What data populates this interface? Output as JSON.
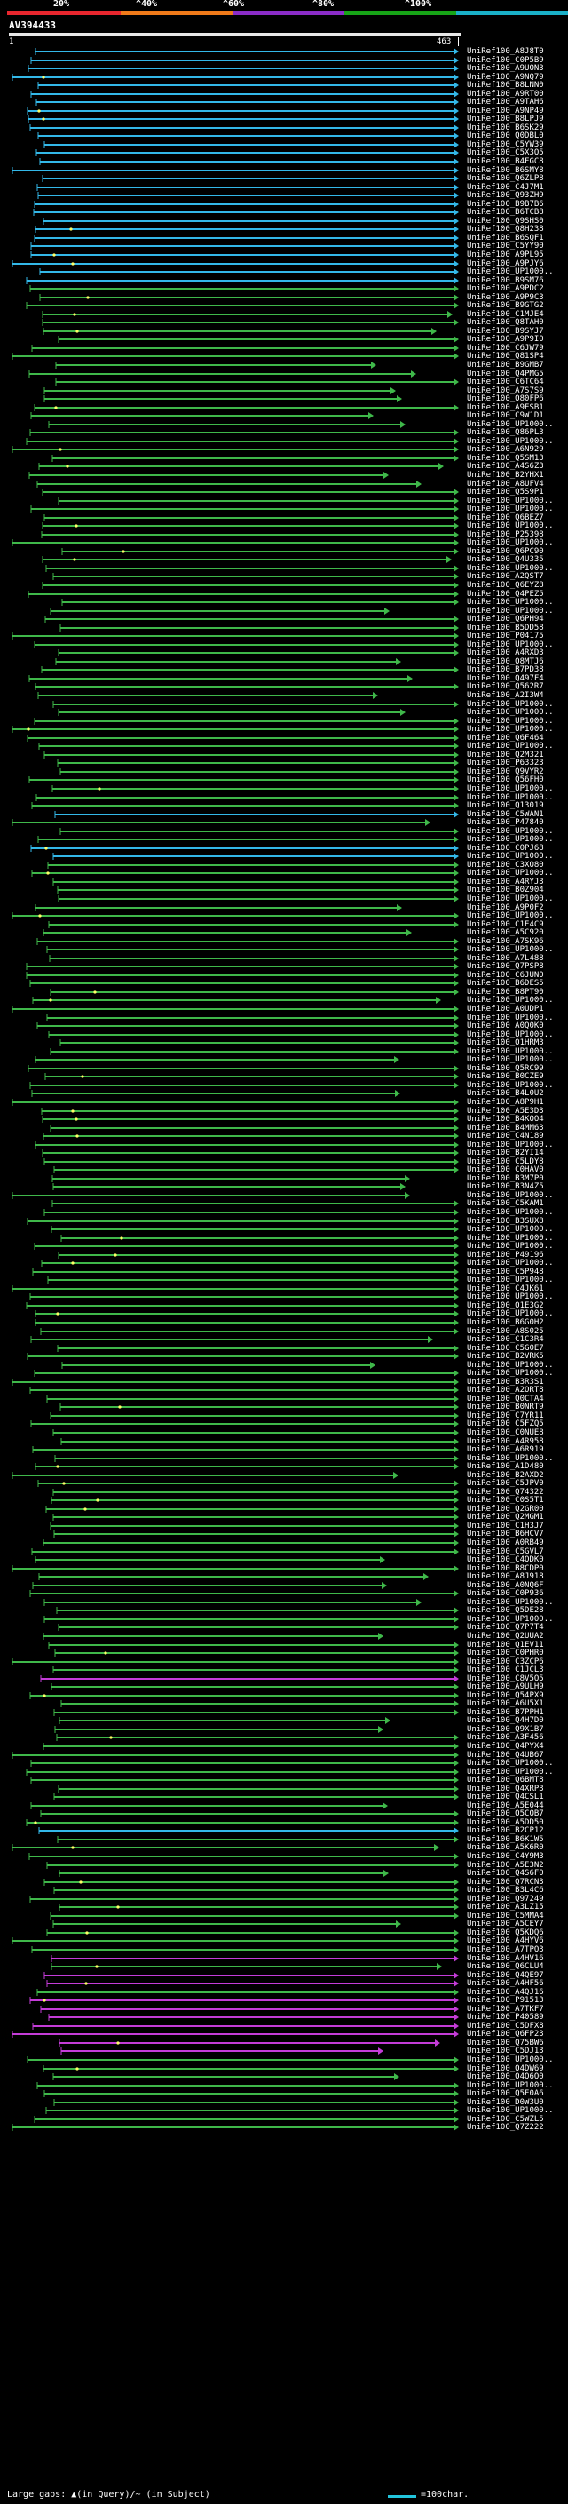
{
  "header": {
    "percent_labels": [
      "20%",
      "^40%",
      "^60%",
      "^80%",
      "^100%"
    ],
    "colors": [
      "#e8262e",
      "#f07a1a",
      "#8b2cc8",
      "#17a517",
      "#1ab0c8"
    ]
  },
  "query": {
    "title": "AV394433",
    "start": "1",
    "end": "463"
  },
  "hit_colors": {
    "cyan": "#33b8e8",
    "green": "#3fb84a",
    "magenta": "#c43cd8",
    "gap": "#ffff66"
  },
  "hits": [
    {
      "label": "UniRef100_A8J8T0",
      "color": "cyan"
    },
    {
      "label": "UniRef100_C0P5B9",
      "color": "cyan"
    },
    {
      "label": "UniRef100_A9UON3",
      "color": "cyan"
    },
    {
      "label": "UniRef100_A9NQ79",
      "color": "cyan"
    },
    {
      "label": "UniRef100_B8LNN0",
      "color": "cyan"
    },
    {
      "label": "UniRef100_A9RT00",
      "color": "cyan"
    },
    {
      "label": "UniRef100_A9TAH6",
      "color": "cyan"
    },
    {
      "label": "UniRef100_A9NP49",
      "color": "cyan"
    },
    {
      "label": "UniRef100_B8LPJ9",
      "color": "cyan"
    },
    {
      "label": "UniRef100_B6SK29",
      "color": "cyan"
    },
    {
      "label": "UniRef100_Q0DBL0",
      "color": "cyan"
    },
    {
      "label": "UniRef100_C5YW39",
      "color": "cyan"
    },
    {
      "label": "UniRef100_C5X3Q5",
      "color": "cyan"
    },
    {
      "label": "UniRef100_B4FGC8",
      "color": "cyan"
    },
    {
      "label": "UniRef100_B6SMY8",
      "color": "cyan"
    },
    {
      "label": "UniRef100_Q6ZLP8",
      "color": "cyan"
    },
    {
      "label": "UniRef100_C4J7M1",
      "color": "cyan"
    },
    {
      "label": "UniRef100_Q93ZH9",
      "color": "cyan"
    },
    {
      "label": "UniRef100_B9B7B6",
      "color": "cyan"
    },
    {
      "label": "UniRef100_B6TCB8",
      "color": "cyan"
    },
    {
      "label": "UniRef100_Q9SHS0",
      "color": "cyan"
    },
    {
      "label": "UniRef100_Q8H238",
      "color": "cyan"
    },
    {
      "label": "UniRef100_B6SQF1",
      "color": "cyan"
    },
    {
      "label": "UniRef100_C5YY90",
      "color": "cyan"
    },
    {
      "label": "UniRef100_A9PL95",
      "color": "cyan"
    },
    {
      "label": "UniRef100_A9PJY6",
      "color": "cyan"
    },
    {
      "label": "UniRef100_UP1000..",
      "color": "cyan"
    },
    {
      "label": "UniRef100_B9SM76",
      "color": "cyan"
    },
    {
      "label": "UniRef100_A9PDC2",
      "color": "green"
    },
    {
      "label": "UniRef100_A9P9C3",
      "color": "green"
    },
    {
      "label": "UniRef100_B9GTG2",
      "color": "green"
    },
    {
      "label": "UniRef100_C1MJE4",
      "color": "green"
    },
    {
      "label": "UniRef100_Q8TAH0",
      "color": "green"
    },
    {
      "label": "UniRef100_B9SYJ7",
      "color": "green"
    },
    {
      "label": "UniRef100_A9P9I0",
      "color": "green"
    },
    {
      "label": "UniRef100_C6JW79",
      "color": "green"
    },
    {
      "label": "UniRef100_Q81SP4",
      "color": "green"
    },
    {
      "label": "UniRef100_B9GMB7",
      "color": "green"
    },
    {
      "label": "UniRef100_Q4PMG5",
      "color": "green"
    },
    {
      "label": "UniRef100_C6TC64",
      "color": "green"
    },
    {
      "label": "UniRef100_A7S7S9",
      "color": "green"
    },
    {
      "label": "UniRef100_Q80FP6",
      "color": "green"
    },
    {
      "label": "UniRef100_A9ESB1",
      "color": "green"
    },
    {
      "label": "UniRef100_C9W1D1",
      "color": "green"
    },
    {
      "label": "UniRef100_UP1000..",
      "color": "green"
    },
    {
      "label": "UniRef100_Q86PL3",
      "color": "green"
    },
    {
      "label": "UniRef100_UP1000..",
      "color": "green"
    },
    {
      "label": "UniRef100_A6N929",
      "color": "green"
    },
    {
      "label": "UniRef100_Q5SM13",
      "color": "green"
    },
    {
      "label": "UniRef100_A4S6Z3",
      "color": "green"
    },
    {
      "label": "UniRef100_B2YHX1",
      "color": "green"
    },
    {
      "label": "UniRef100_A8UFV4",
      "color": "green"
    },
    {
      "label": "UniRef100_Q5S9P1",
      "color": "green"
    },
    {
      "label": "UniRef100_UP1000..",
      "color": "green"
    },
    {
      "label": "UniRef100_UP1000..",
      "color": "green"
    },
    {
      "label": "UniRef100_Q6BEZ7",
      "color": "green"
    },
    {
      "label": "UniRef100_UP1000..",
      "color": "green"
    },
    {
      "label": "UniRef100_P25398",
      "color": "green"
    },
    {
      "label": "UniRef100_UP1000..",
      "color": "green"
    },
    {
      "label": "UniRef100_Q6PC90",
      "color": "green"
    },
    {
      "label": "UniRef100_Q4U335",
      "color": "green"
    },
    {
      "label": "UniRef100_UP1000..",
      "color": "green"
    },
    {
      "label": "UniRef100_A2QST7",
      "color": "green"
    },
    {
      "label": "UniRef100_Q6EYZ8",
      "color": "green"
    },
    {
      "label": "UniRef100_Q4PEZ5",
      "color": "green"
    },
    {
      "label": "UniRef100_UP1000..",
      "color": "green"
    },
    {
      "label": "UniRef100_UP1000..",
      "color": "green"
    },
    {
      "label": "UniRef100_Q6PH94",
      "color": "green"
    },
    {
      "label": "UniRef100_B5DD58",
      "color": "green"
    },
    {
      "label": "UniRef100_P04175",
      "color": "green"
    },
    {
      "label": "UniRef100_UP1000..",
      "color": "green"
    },
    {
      "label": "UniRef100_A4RXD3",
      "color": "green"
    },
    {
      "label": "UniRef100_Q8MTJ6",
      "color": "green"
    },
    {
      "label": "UniRef100_B7PD38",
      "color": "green"
    },
    {
      "label": "UniRef100_Q497F4",
      "color": "green"
    },
    {
      "label": "UniRef100_Q562R7",
      "color": "green"
    },
    {
      "label": "UniRef100_A2I3W4",
      "color": "green"
    },
    {
      "label": "UniRef100_UP1000..",
      "color": "green"
    },
    {
      "label": "UniRef100_UP1000..",
      "color": "green"
    },
    {
      "label": "UniRef100_UP1000..",
      "color": "green"
    },
    {
      "label": "UniRef100_UP1000..",
      "color": "green"
    },
    {
      "label": "UniRef100_Q6F464",
      "color": "green"
    },
    {
      "label": "UniRef100_UP1000..",
      "color": "green"
    },
    {
      "label": "UniRef100_Q2M321",
      "color": "green"
    },
    {
      "label": "UniRef100_P63323",
      "color": "green"
    },
    {
      "label": "UniRef100_Q9VYR2",
      "color": "green"
    },
    {
      "label": "UniRef100_Q56FH0",
      "color": "green"
    },
    {
      "label": "UniRef100_UP1000..",
      "color": "green"
    },
    {
      "label": "UniRef100_UP1000..",
      "color": "green"
    },
    {
      "label": "UniRef100_Q13019",
      "color": "green"
    },
    {
      "label": "UniRef100_C5WAN1",
      "color": "cyan"
    },
    {
      "label": "UniRef100_P47840",
      "color": "green"
    },
    {
      "label": "UniRef100_UP1000..",
      "color": "green"
    },
    {
      "label": "UniRef100_UP1000..",
      "color": "green"
    },
    {
      "label": "UniRef100_C0PJ68",
      "color": "cyan"
    },
    {
      "label": "UniRef100_UP1000..",
      "color": "cyan"
    },
    {
      "label": "UniRef100_C3XO80",
      "color": "green"
    },
    {
      "label": "UniRef100_UP1000..",
      "color": "green"
    },
    {
      "label": "UniRef100_A4RYJ3",
      "color": "green"
    },
    {
      "label": "UniRef100_B0Z904",
      "color": "green"
    },
    {
      "label": "UniRef100_UP1000..",
      "color": "green"
    },
    {
      "label": "UniRef100_A9P0F2",
      "color": "green"
    },
    {
      "label": "UniRef100_UP1000..",
      "color": "green"
    },
    {
      "label": "UniRef100_C1E4C9",
      "color": "green"
    },
    {
      "label": "UniRef100_A5C920",
      "color": "green"
    },
    {
      "label": "UniRef100_A7SK96",
      "color": "green"
    },
    {
      "label": "UniRef100_UP1000..",
      "color": "green"
    },
    {
      "label": "UniRef100_A7L488",
      "color": "green"
    },
    {
      "label": "UniRef100_Q7PSP8",
      "color": "green"
    },
    {
      "label": "UniRef100_C6JUN0",
      "color": "green"
    },
    {
      "label": "UniRef100_B6DES5",
      "color": "green"
    },
    {
      "label": "UniRef100_B8PT90",
      "color": "green"
    },
    {
      "label": "UniRef100_UP1000..",
      "color": "green"
    },
    {
      "label": "UniRef100_A0UDP1",
      "color": "green"
    },
    {
      "label": "UniRef100_UP1000..",
      "color": "green"
    },
    {
      "label": "UniRef100_A0Q0K0",
      "color": "green"
    },
    {
      "label": "UniRef100_UP1000..",
      "color": "green"
    },
    {
      "label": "UniRef100_Q1HRM3",
      "color": "green"
    },
    {
      "label": "UniRef100_UP1000..",
      "color": "green"
    },
    {
      "label": "UniRef100_UP1000..",
      "color": "green"
    },
    {
      "label": "UniRef100_Q5RC99",
      "color": "green"
    },
    {
      "label": "UniRef100_B0CZE9",
      "color": "green"
    },
    {
      "label": "UniRef100_UP1000..",
      "color": "green"
    },
    {
      "label": "UniRef100_B4L0U2",
      "color": "green"
    },
    {
      "label": "UniRef100_A8P9H1",
      "color": "green"
    },
    {
      "label": "UniRef100_A5E3D3",
      "color": "green"
    },
    {
      "label": "UniRef100_B4KOO4",
      "color": "green"
    },
    {
      "label": "UniRef100_B4MM63",
      "color": "green"
    },
    {
      "label": "UniRef100_C4N189",
      "color": "green"
    },
    {
      "label": "UniRef100_UP1000..",
      "color": "green"
    },
    {
      "label": "UniRef100_B2YI14",
      "color": "green"
    },
    {
      "label": "UniRef100_C5LDY8",
      "color": "green"
    },
    {
      "label": "UniRef100_C0HAV0",
      "color": "green"
    },
    {
      "label": "UniRef100_B3M7P0",
      "color": "green"
    },
    {
      "label": "UniRef100_B3N4Z5",
      "color": "green"
    },
    {
      "label": "UniRef100_UP1000..",
      "color": "green"
    },
    {
      "label": "UniRef100_C5KAM1",
      "color": "green"
    },
    {
      "label": "UniRef100_UP1000..",
      "color": "green"
    },
    {
      "label": "UniRef100_B3SUX8",
      "color": "green"
    },
    {
      "label": "UniRef100_UP1000..",
      "color": "green"
    },
    {
      "label": "UniRef100_UP1000..",
      "color": "green"
    },
    {
      "label": "UniRef100_UP1000..",
      "color": "green"
    },
    {
      "label": "UniRef100_P49196",
      "color": "green"
    },
    {
      "label": "UniRef100_UP1000..",
      "color": "green"
    },
    {
      "label": "UniRef100_C5P948",
      "color": "green"
    },
    {
      "label": "UniRef100_UP1000..",
      "color": "green"
    },
    {
      "label": "UniRef100_C4JK61",
      "color": "green"
    },
    {
      "label": "UniRef100_UP1000..",
      "color": "green"
    },
    {
      "label": "UniRef100_Q1E3G2",
      "color": "green"
    },
    {
      "label": "UniRef100_UP1000..",
      "color": "green"
    },
    {
      "label": "UniRef100_B6G0H2",
      "color": "green"
    },
    {
      "label": "UniRef100_A8S025",
      "color": "green"
    },
    {
      "label": "UniRef100_C1C3R4",
      "color": "green"
    },
    {
      "label": "UniRef100_C5G0E7",
      "color": "green"
    },
    {
      "label": "UniRef100_B2VRK5",
      "color": "green"
    },
    {
      "label": "UniRef100_UP1000..",
      "color": "green"
    },
    {
      "label": "UniRef100_UP1000..",
      "color": "green"
    },
    {
      "label": "UniRef100_B3R3S1",
      "color": "green"
    },
    {
      "label": "UniRef100_A2ORT8",
      "color": "green"
    },
    {
      "label": "UniRef100_Q0CTA4",
      "color": "green"
    },
    {
      "label": "UniRef100_B0NRT9",
      "color": "green"
    },
    {
      "label": "UniRef100_C7YR11",
      "color": "green"
    },
    {
      "label": "UniRef100_C5FZQ5",
      "color": "green"
    },
    {
      "label": "UniRef100_C0NUE8",
      "color": "green"
    },
    {
      "label": "UniRef100_A4R958",
      "color": "green"
    },
    {
      "label": "UniRef100_A6R919",
      "color": "green"
    },
    {
      "label": "UniRef100_UP1000..",
      "color": "green"
    },
    {
      "label": "UniRef100_A1D480",
      "color": "green"
    },
    {
      "label": "UniRef100_B2AXD2",
      "color": "green"
    },
    {
      "label": "UniRef100_C5JPV0",
      "color": "green"
    },
    {
      "label": "UniRef100_Q74322",
      "color": "green"
    },
    {
      "label": "UniRef100_C0S5T1",
      "color": "green"
    },
    {
      "label": "UniRef100_Q2GR00",
      "color": "green"
    },
    {
      "label": "UniRef100_Q2MGM1",
      "color": "green"
    },
    {
      "label": "UniRef100_C1H3J7",
      "color": "green"
    },
    {
      "label": "UniRef100_B6HCV7",
      "color": "green"
    },
    {
      "label": "UniRef100_A0RB49",
      "color": "green"
    },
    {
      "label": "UniRef100_C5GVL7",
      "color": "green"
    },
    {
      "label": "UniRef100_C4QDK0",
      "color": "green"
    },
    {
      "label": "UniRef100_B8CDP0",
      "color": "green"
    },
    {
      "label": "UniRef100_A8J918",
      "color": "green"
    },
    {
      "label": "UniRef100_A0NQ6F",
      "color": "green"
    },
    {
      "label": "UniRef100_C0P936",
      "color": "green"
    },
    {
      "label": "UniRef100_UP1000..",
      "color": "green"
    },
    {
      "label": "UniRef100_Q5DE28",
      "color": "green"
    },
    {
      "label": "UniRef100_UP1000..",
      "color": "green"
    },
    {
      "label": "UniRef100_Q7P7T4",
      "color": "green"
    },
    {
      "label": "UniRef100_Q2UUA2",
      "color": "green"
    },
    {
      "label": "UniRef100_Q1EV11",
      "color": "green"
    },
    {
      "label": "UniRef100_C0PHR0",
      "color": "green"
    },
    {
      "label": "UniRef100_C3ZCP6",
      "color": "green"
    },
    {
      "label": "UniRef100_C1JCL3",
      "color": "green"
    },
    {
      "label": "UniRef100_C8V5Q5",
      "color": "magenta"
    },
    {
      "label": "UniRef100_A9ULH9",
      "color": "green"
    },
    {
      "label": "UniRef100_Q54PX9",
      "color": "green"
    },
    {
      "label": "UniRef100_A6U5X1",
      "color": "green"
    },
    {
      "label": "UniRef100_B7PPH1",
      "color": "green"
    },
    {
      "label": "UniRef100_Q4H7D0",
      "color": "green"
    },
    {
      "label": "UniRef100_Q9X1B7",
      "color": "green"
    },
    {
      "label": "UniRef100_A3F456",
      "color": "green"
    },
    {
      "label": "UniRef100_Q4PYX4",
      "color": "green"
    },
    {
      "label": "UniRef100_Q4UB67",
      "color": "green"
    },
    {
      "label": "UniRef100_UP1000..",
      "color": "green"
    },
    {
      "label": "UniRef100_UP1000..",
      "color": "green"
    },
    {
      "label": "UniRef100_Q6BMT8",
      "color": "green"
    },
    {
      "label": "UniRef100_Q4XRP3",
      "color": "green"
    },
    {
      "label": "UniRef100_Q4CSL1",
      "color": "green"
    },
    {
      "label": "UniRef100_A5E044",
      "color": "green"
    },
    {
      "label": "UniRef100_Q5CQB7",
      "color": "green"
    },
    {
      "label": "UniRef100_A5DD50",
      "color": "green"
    },
    {
      "label": "UniRef100_B2CP12",
      "color": "cyan"
    },
    {
      "label": "UniRef100_B6K1W5",
      "color": "green"
    },
    {
      "label": "UniRef100_A5K6R0",
      "color": "green"
    },
    {
      "label": "UniRef100_C4Y9M3",
      "color": "green"
    },
    {
      "label": "UniRef100_A5E3N2",
      "color": "green"
    },
    {
      "label": "UniRef100_Q4S6F0",
      "color": "green"
    },
    {
      "label": "UniRef100_Q7RCN3",
      "color": "green"
    },
    {
      "label": "UniRef100_B3L4C6",
      "color": "green"
    },
    {
      "label": "UniRef100_Q97249",
      "color": "green"
    },
    {
      "label": "UniRef100_A3LZ15",
      "color": "green"
    },
    {
      "label": "UniRef100_C5MMA4",
      "color": "green"
    },
    {
      "label": "UniRef100_A5CEY7",
      "color": "green"
    },
    {
      "label": "UniRef100_Q5KDQ6",
      "color": "green"
    },
    {
      "label": "UniRef100_A4HYV6",
      "color": "green"
    },
    {
      "label": "UniRef100_A7TPQ3",
      "color": "green"
    },
    {
      "label": "UniRef100_A4HV16",
      "color": "magenta"
    },
    {
      "label": "UniRef100_Q6CLU4",
      "color": "green"
    },
    {
      "label": "UniRef100_Q4QE97",
      "color": "magenta"
    },
    {
      "label": "UniRef100_A4HF56",
      "color": "magenta"
    },
    {
      "label": "UniRef100_A4QJ16",
      "color": "green"
    },
    {
      "label": "UniRef100_P91513",
      "color": "magenta"
    },
    {
      "label": "UniRef100_A7TKF7",
      "color": "magenta"
    },
    {
      "label": "UniRef100_P40589",
      "color": "magenta"
    },
    {
      "label": "UniRef100_C5DFX8",
      "color": "magenta"
    },
    {
      "label": "UniRef100_Q6FP23",
      "color": "magenta"
    },
    {
      "label": "UniRef100_Q75BW6",
      "color": "magenta"
    },
    {
      "label": "UniRef100_C5DJ13",
      "color": "magenta"
    },
    {
      "label": "UniRef100_UP1000..",
      "color": "green"
    },
    {
      "label": "UniRef100_Q4DW69",
      "color": "green"
    },
    {
      "label": "UniRef100_Q4Q6Q0",
      "color": "green"
    },
    {
      "label": "UniRef100_UP1000..",
      "color": "green"
    },
    {
      "label": "UniRef100_Q5E0A6",
      "color": "green"
    },
    {
      "label": "UniRef100_D0W3U0",
      "color": "green"
    },
    {
      "label": "UniRef100_UP1000..",
      "color": "green"
    },
    {
      "label": "UniRef100_C5WZL5",
      "color": "green"
    },
    {
      "label": "UniRef100_Q7Z222",
      "color": "green"
    }
  ],
  "legend": {
    "text": "Large gaps: ▲(in Query)/~ (in Subject)",
    "scale": "=100char."
  }
}
